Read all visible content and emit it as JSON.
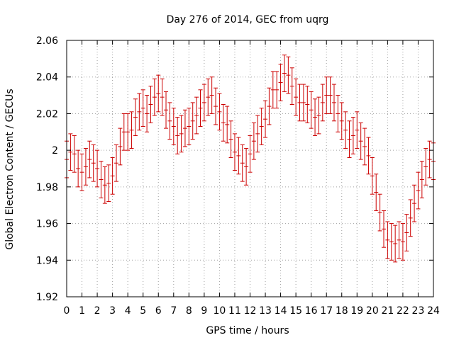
{
  "chart_data": {
    "type": "scatter",
    "title": "Day 276 of 2014, GEC from uqrg",
    "xlabel": "GPS time / hours",
    "ylabel": "Global Electron Content / GECUs",
    "xlim": [
      0,
      24
    ],
    "ylim": [
      1.92,
      2.06
    ],
    "x_ticks": [
      0,
      1,
      2,
      3,
      4,
      5,
      6,
      7,
      8,
      9,
      10,
      11,
      12,
      13,
      14,
      15,
      16,
      17,
      18,
      19,
      20,
      21,
      22,
      23,
      24
    ],
    "x_tick_labels": [
      "0",
      "1",
      "2",
      "3",
      "4",
      "5",
      "6",
      "7",
      "8",
      "9",
      "10",
      "11",
      "12",
      "13",
      "14",
      "15",
      "16",
      "17",
      "18",
      "19",
      "20",
      "21",
      "22",
      "23",
      "24"
    ],
    "y_ticks": [
      1.92,
      1.94,
      1.96,
      1.98,
      2.0,
      2.02,
      2.04,
      2.06
    ],
    "y_tick_labels": [
      "1.92",
      "1.94",
      "1.96",
      "1.98",
      "2",
      "2.02",
      "2.04",
      "2.06"
    ],
    "grid": true,
    "color": "#cc0000",
    "error": 0.01,
    "x": [
      0.0,
      0.25,
      0.5,
      0.75,
      1.0,
      1.25,
      1.5,
      1.75,
      2.0,
      2.25,
      2.5,
      2.75,
      3.0,
      3.25,
      3.5,
      3.75,
      4.0,
      4.25,
      4.5,
      4.75,
      5.0,
      5.25,
      5.5,
      5.75,
      6.0,
      6.25,
      6.5,
      6.75,
      7.0,
      7.25,
      7.5,
      7.75,
      8.0,
      8.25,
      8.5,
      8.75,
      9.0,
      9.25,
      9.5,
      9.75,
      10.0,
      10.25,
      10.5,
      10.75,
      11.0,
      11.25,
      11.5,
      11.75,
      12.0,
      12.25,
      12.5,
      12.75,
      13.0,
      13.25,
      13.5,
      13.75,
      14.0,
      14.25,
      14.5,
      14.75,
      15.0,
      15.25,
      15.5,
      15.75,
      16.0,
      16.25,
      16.5,
      16.75,
      17.0,
      17.25,
      17.5,
      17.75,
      18.0,
      18.25,
      18.5,
      18.75,
      19.0,
      19.25,
      19.5,
      19.75,
      20.0,
      20.25,
      20.5,
      20.75,
      21.0,
      21.25,
      21.5,
      21.75,
      22.0,
      22.25,
      22.5,
      22.75,
      23.0,
      23.25,
      23.5,
      23.75,
      24.0
    ],
    "y": [
      1.995,
      1.999,
      1.998,
      1.99,
      1.988,
      1.991,
      1.995,
      1.993,
      1.99,
      1.984,
      1.981,
      1.982,
      1.986,
      1.993,
      2.002,
      2.01,
      2.01,
      2.011,
      2.018,
      2.021,
      2.023,
      2.02,
      2.025,
      2.029,
      2.031,
      2.029,
      2.022,
      2.016,
      2.013,
      2.008,
      2.009,
      2.012,
      2.013,
      2.016,
      2.019,
      2.023,
      2.026,
      2.029,
      2.03,
      2.024,
      2.021,
      2.015,
      2.014,
      2.006,
      1.999,
      1.997,
      1.993,
      1.991,
      1.998,
      2.005,
      2.009,
      2.013,
      2.017,
      2.024,
      2.033,
      2.033,
      2.037,
      2.042,
      2.041,
      2.035,
      2.029,
      2.026,
      2.026,
      2.025,
      2.022,
      2.018,
      2.019,
      2.026,
      2.03,
      2.03,
      2.026,
      2.02,
      2.016,
      2.011,
      2.006,
      2.008,
      2.011,
      2.005,
      2.002,
      1.997,
      1.986,
      1.977,
      1.966,
      1.957,
      1.951,
      1.95,
      1.949,
      1.951,
      1.95,
      1.955,
      1.963,
      1.971,
      1.978,
      1.984,
      1.991,
      1.995,
      1.994
    ]
  }
}
